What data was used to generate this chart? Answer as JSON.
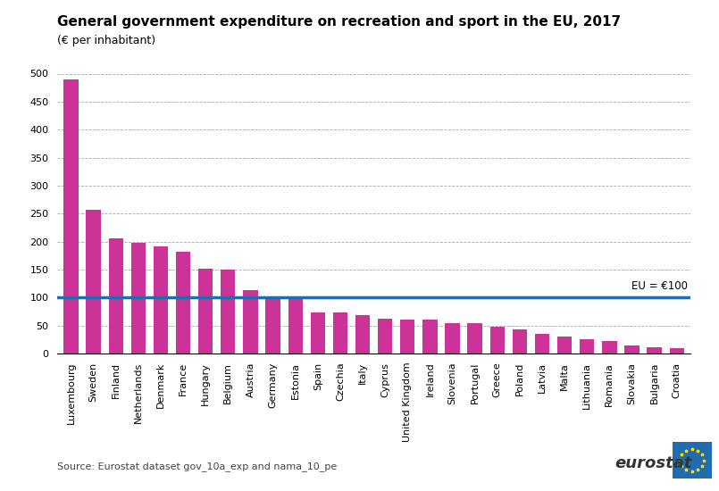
{
  "title": "General government expenditure on recreation and sport in the EU, 2017",
  "subtitle": "(€ per inhabitant)",
  "source": "Source: Eurostat dataset gov_10a_exp and nama_10_pe",
  "eu_line": 100,
  "eu_label": "EU = €100",
  "bar_color": "#CC3399",
  "eu_line_color": "#1F6CB0",
  "background_color": "#ffffff",
  "ylim": [
    0,
    500
  ],
  "yticks": [
    0,
    50,
    100,
    150,
    200,
    250,
    300,
    350,
    400,
    450,
    500
  ],
  "categories": [
    "Luxembourg",
    "Sweden",
    "Finland",
    "Netherlands",
    "Denmark",
    "France",
    "Hungary",
    "Belgium",
    "Austria",
    "Germany",
    "Estonia",
    "Spain",
    "Czechia",
    "Italy",
    "Cyprus",
    "United Kingdom",
    "Ireland",
    "Slovenia",
    "Portugal",
    "Greece",
    "Poland",
    "Latvia",
    "Malta",
    "Lithuania",
    "Romania",
    "Slovakia",
    "Bulgaria",
    "Croatia"
  ],
  "values": [
    490,
    257,
    206,
    198,
    192,
    182,
    151,
    150,
    113,
    100,
    100,
    74,
    73,
    69,
    62,
    61,
    60,
    55,
    54,
    48,
    43,
    35,
    30,
    26,
    22,
    14,
    11,
    10
  ],
  "title_fontsize": 11,
  "subtitle_fontsize": 9,
  "tick_fontsize": 8,
  "source_fontsize": 8
}
